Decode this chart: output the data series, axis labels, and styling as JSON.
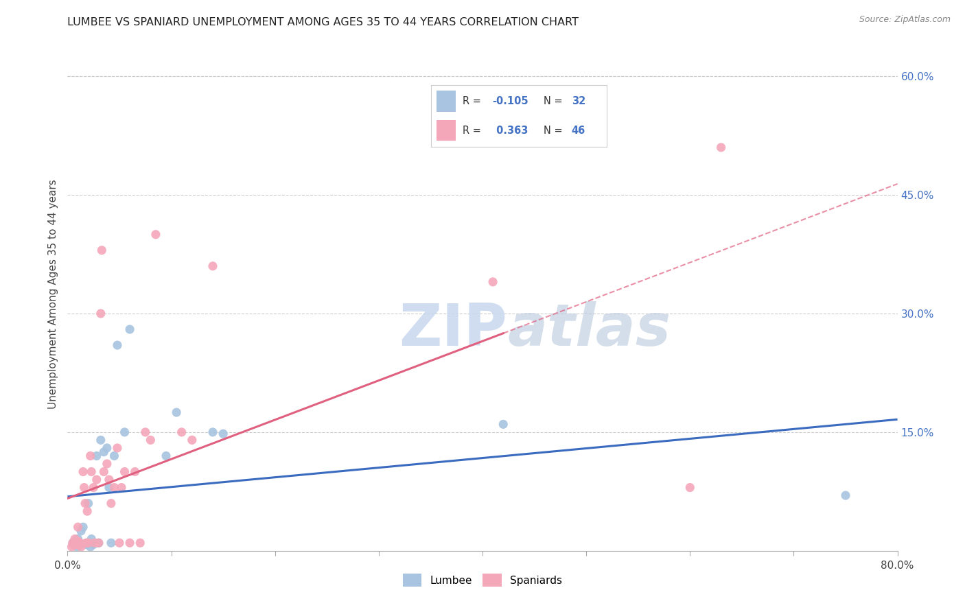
{
  "title": "LUMBEE VS SPANIARD UNEMPLOYMENT AMONG AGES 35 TO 44 YEARS CORRELATION CHART",
  "source": "Source: ZipAtlas.com",
  "ylabel": "Unemployment Among Ages 35 to 44 years",
  "xlim": [
    0.0,
    0.8
  ],
  "ylim": [
    0.0,
    0.65
  ],
  "xticks": [
    0.0,
    0.1,
    0.2,
    0.3,
    0.4,
    0.5,
    0.6,
    0.7,
    0.8
  ],
  "yticks_right": [
    0.0,
    0.15,
    0.3,
    0.45,
    0.6
  ],
  "yticklabels_right": [
    "",
    "15.0%",
    "30.0%",
    "45.0%",
    "60.0%"
  ],
  "lumbee_R": "-0.105",
  "lumbee_N": "32",
  "spaniard_R": "0.363",
  "spaniard_N": "46",
  "lumbee_color": "#a8c4e0",
  "spaniard_color": "#f4a7b9",
  "lumbee_line_color": "#3a6bbf",
  "spaniard_line_color": "#e06080",
  "background_color": "#ffffff",
  "watermark_zip": "ZIP",
  "watermark_atlas": "atlas",
  "lumbee_x": [
    0.005,
    0.007,
    0.008,
    0.009,
    0.01,
    0.011,
    0.012,
    0.013,
    0.015,
    0.018,
    0.019,
    0.02,
    0.022,
    0.023,
    0.025,
    0.028,
    0.03,
    0.032,
    0.035,
    0.038,
    0.04,
    0.042,
    0.045,
    0.048,
    0.055,
    0.06,
    0.095,
    0.105,
    0.14,
    0.15,
    0.42,
    0.75
  ],
  "lumbee_y": [
    0.01,
    0.008,
    0.012,
    0.005,
    0.015,
    0.01,
    0.008,
    0.025,
    0.03,
    0.008,
    0.01,
    0.06,
    0.005,
    0.015,
    0.008,
    0.12,
    0.01,
    0.14,
    0.125,
    0.13,
    0.08,
    0.01,
    0.12,
    0.26,
    0.15,
    0.28,
    0.12,
    0.175,
    0.15,
    0.148,
    0.16,
    0.07
  ],
  "spaniard_x": [
    0.004,
    0.005,
    0.006,
    0.007,
    0.008,
    0.009,
    0.01,
    0.01,
    0.011,
    0.012,
    0.013,
    0.015,
    0.016,
    0.017,
    0.018,
    0.019,
    0.02,
    0.022,
    0.023,
    0.025,
    0.026,
    0.028,
    0.03,
    0.032,
    0.033,
    0.035,
    0.038,
    0.04,
    0.042,
    0.045,
    0.048,
    0.05,
    0.052,
    0.055,
    0.06,
    0.065,
    0.07,
    0.075,
    0.08,
    0.085,
    0.11,
    0.12,
    0.14,
    0.41,
    0.6,
    0.63
  ],
  "spaniard_y": [
    0.005,
    0.01,
    0.008,
    0.015,
    0.008,
    0.01,
    0.012,
    0.03,
    0.008,
    0.01,
    0.005,
    0.1,
    0.08,
    0.06,
    0.01,
    0.05,
    0.01,
    0.12,
    0.1,
    0.08,
    0.01,
    0.09,
    0.01,
    0.3,
    0.38,
    0.1,
    0.11,
    0.09,
    0.06,
    0.08,
    0.13,
    0.01,
    0.08,
    0.1,
    0.01,
    0.1,
    0.01,
    0.15,
    0.14,
    0.4,
    0.15,
    0.14,
    0.36,
    0.34,
    0.08,
    0.51
  ]
}
